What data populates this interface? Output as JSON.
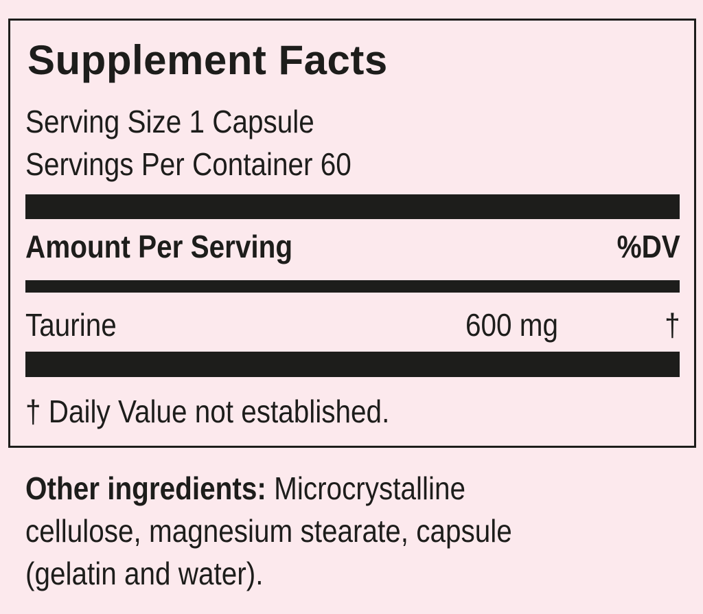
{
  "panel": {
    "title": "Supplement Facts",
    "serving_size": "Serving Size 1 Capsule",
    "servings_per_container": "Servings Per Container 60",
    "amount_header": "Amount Per Serving",
    "dv_header": "%DV",
    "ingredients": [
      {
        "name": "Taurine",
        "amount": "600 mg",
        "dv": "†"
      }
    ],
    "footnote": "† Daily Value not established."
  },
  "other_ingredients": {
    "label": "Other ingredients:",
    "line1": " Microcrystalline",
    "line2": "cellulose, magnesium stearate, capsule",
    "line3": "(gelatin and water)."
  },
  "colors": {
    "background": "#fce9ed",
    "ink": "#1d1d1b"
  }
}
